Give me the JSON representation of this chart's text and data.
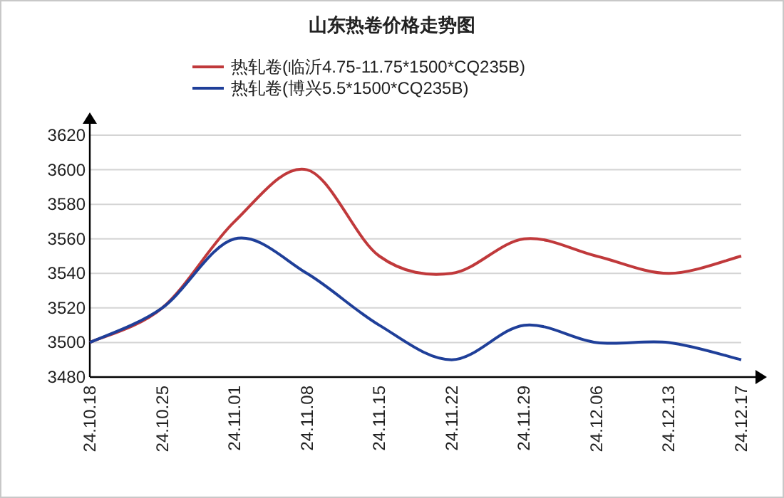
{
  "chart_data": {
    "type": "line",
    "title": "山东热卷价格走势图",
    "categories": [
      "24.10.18",
      "24.10.25",
      "24.11.01",
      "24.11.08",
      "24.11.15",
      "24.11.22",
      "24.11.29",
      "24.12.06",
      "24.12.13",
      "24.12.17"
    ],
    "series": [
      {
        "name": "热轧卷(临沂4.75-11.75*1500*CQ235B)",
        "color": "#c0393b",
        "values": [
          3500,
          3520,
          3570,
          3600,
          3550,
          3540,
          3560,
          3550,
          3540,
          3550
        ]
      },
      {
        "name": "热轧卷(博兴5.5*1500*CQ235B)",
        "color": "#1f3f99",
        "values": [
          3500,
          3520,
          3560,
          3540,
          3510,
          3490,
          3510,
          3500,
          3500,
          3490
        ]
      }
    ],
    "ylim": [
      3480,
      3620
    ],
    "yticks": [
      3480,
      3500,
      3520,
      3540,
      3560,
      3580,
      3600,
      3620
    ],
    "grid": "y",
    "legend": "top",
    "marker": "none",
    "line_style": "solid"
  }
}
